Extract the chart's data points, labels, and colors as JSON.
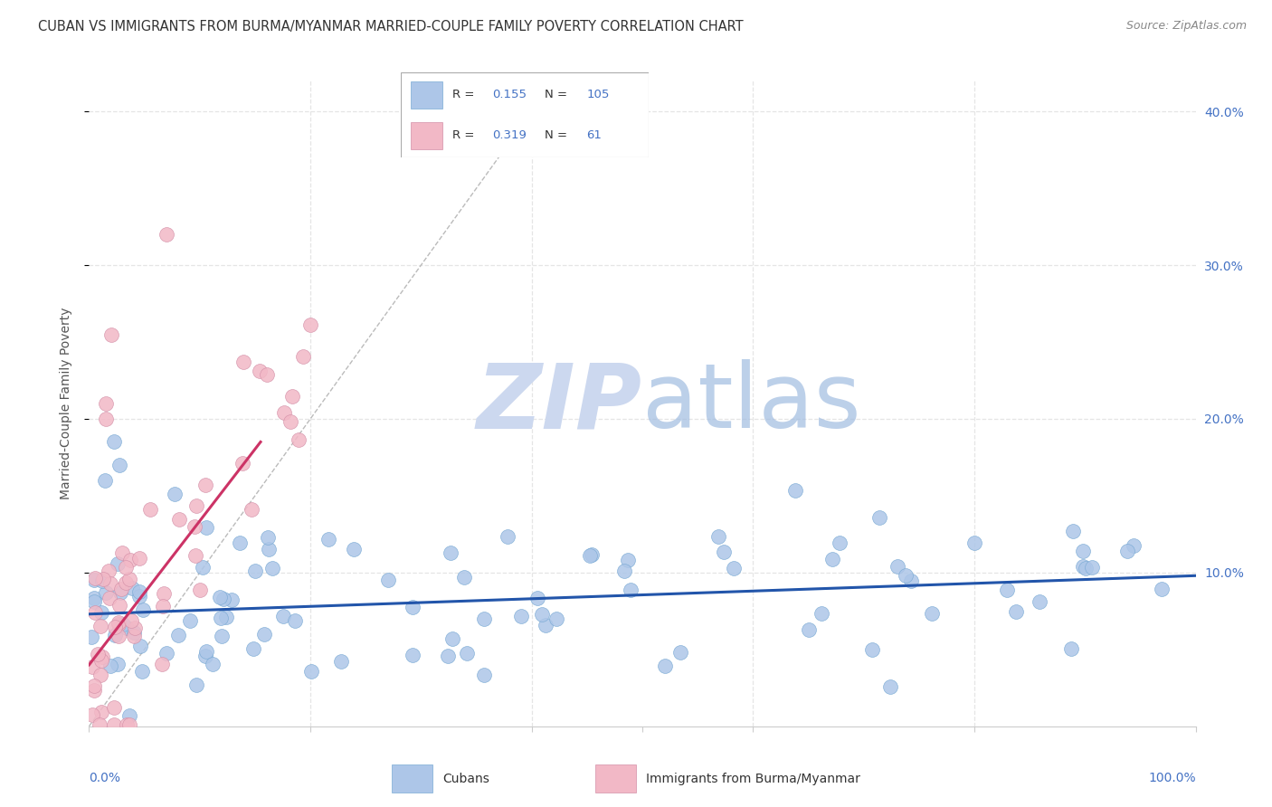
{
  "title": "CUBAN VS IMMIGRANTS FROM BURMA/MYANMAR MARRIED-COUPLE FAMILY POVERTY CORRELATION CHART",
  "source": "Source: ZipAtlas.com",
  "ylabel": "Married-Couple Family Poverty",
  "xlim": [
    0.0,
    1.0
  ],
  "ylim": [
    0.0,
    0.42
  ],
  "blue_color": "#adc6e8",
  "pink_color": "#f2b8c6",
  "blue_edge_color": "#7aaad4",
  "pink_edge_color": "#d490a8",
  "blue_line_color": "#2255aa",
  "pink_line_color": "#cc3366",
  "watermark_color": "#ccd8ef",
  "background_color": "#ffffff",
  "grid_color": "#e5e5e5",
  "title_color": "#333333",
  "source_color": "#888888",
  "axis_label_color": "#4472c4",
  "ylabel_color": "#555555",
  "blue_line_x0": 0.0,
  "blue_line_x1": 1.0,
  "blue_line_y0": 0.073,
  "blue_line_y1": 0.098,
  "pink_line_x0": 0.0,
  "pink_line_x1": 0.155,
  "pink_line_y0": 0.04,
  "pink_line_y1": 0.185,
  "diag_line_x0": 0.0,
  "diag_line_x1": 0.42,
  "diag_line_y0": 0.0,
  "diag_line_y1": 0.42,
  "R_blue": "0.155",
  "N_blue": "105",
  "R_pink": "0.319",
  "N_pink": "61",
  "legend_label_blue": "Cubans",
  "legend_label_pink": "Immigrants from Burma/Myanmar"
}
